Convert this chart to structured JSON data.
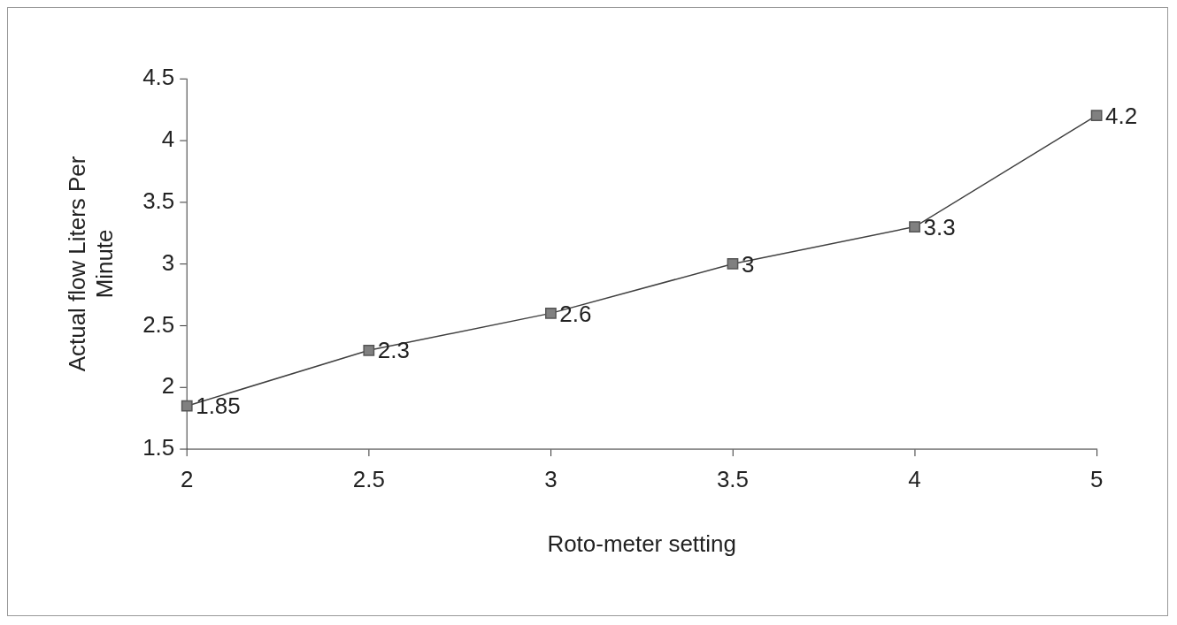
{
  "chart_data": {
    "type": "line",
    "xlabel": "Roto-meter setting",
    "ylabel": "Actual flow Liters Per Minute",
    "categories": [
      "2",
      "2.5",
      "3",
      "3.5",
      "4",
      "5"
    ],
    "series": [
      {
        "color": "#808080",
        "values": [
          1.85,
          2.3,
          2.6,
          3,
          3.3,
          4.2
        ]
      }
    ],
    "ylim": [
      1.5,
      4.5
    ],
    "yticks": [
      1.5,
      2,
      2.5,
      3,
      3.5,
      4,
      4.5
    ],
    "grid": false,
    "legend": false,
    "marker": "square",
    "line_style": "solid",
    "data_labels": true
  }
}
